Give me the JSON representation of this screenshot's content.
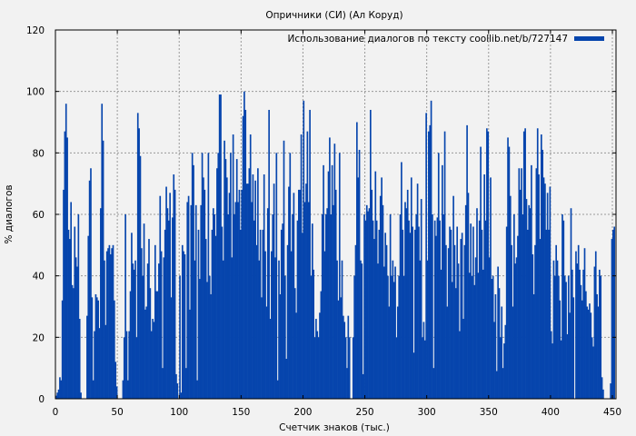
{
  "chart_data": {
    "type": "bar",
    "title": "Опричники (СИ) (Ал Коруд)",
    "xlabel": "Счетчик знаков (тыс.)",
    "ylabel": "% диалогов",
    "xlim": [
      0,
      452
    ],
    "ylim": [
      0,
      120
    ],
    "xticks": [
      0,
      50,
      100,
      150,
      200,
      250,
      300,
      350,
      400,
      450
    ],
    "yticks": [
      0,
      20,
      40,
      60,
      80,
      100,
      120
    ],
    "grid": true,
    "legend": {
      "label": "Использование диалогов по тексту coollib.net/b/727147",
      "placement": "top-right"
    },
    "color": "#0645AD",
    "x_start": 0,
    "x_step": 1,
    "values": [
      1,
      2,
      3,
      7,
      6,
      32,
      68,
      87,
      96,
      85,
      55,
      52,
      64,
      37,
      36,
      56,
      46,
      43,
      60,
      26,
      2,
      0,
      0,
      0,
      0,
      27,
      53,
      71,
      75,
      33,
      6,
      22,
      34,
      33,
      32,
      23,
      62,
      96,
      84,
      45,
      24,
      48,
      49,
      50,
      47,
      49,
      50,
      32,
      12,
      4,
      0,
      0,
      0,
      0,
      6,
      20,
      60,
      22,
      6,
      22,
      35,
      54,
      44,
      42,
      45,
      20,
      93,
      88,
      79,
      49,
      40,
      57,
      29,
      30,
      44,
      52,
      36,
      22,
      26,
      25,
      50,
      35,
      35,
      44,
      66,
      48,
      10,
      46,
      55,
      69,
      62,
      58,
      67,
      33,
      59,
      73,
      68,
      8,
      5,
      0,
      40,
      2,
      50,
      48,
      47,
      10,
      64,
      66,
      29,
      63,
      80,
      76,
      45,
      63,
      6,
      55,
      39,
      63,
      80,
      72,
      68,
      52,
      38,
      80,
      40,
      34,
      55,
      62,
      60,
      53,
      75,
      80,
      99,
      99,
      56,
      45,
      84,
      78,
      72,
      60,
      67,
      80,
      46,
      86,
      60,
      64,
      78,
      64,
      68,
      55,
      68,
      92,
      100,
      94,
      70,
      70,
      75,
      86,
      64,
      73,
      58,
      71,
      50,
      75,
      45,
      55,
      33,
      55,
      73,
      48,
      30,
      62,
      94,
      26,
      48,
      60,
      70,
      46,
      80,
      6,
      45,
      34,
      55,
      57,
      84,
      40,
      13,
      50,
      69,
      80,
      48,
      60,
      67,
      36,
      28,
      58,
      68,
      68,
      86,
      54,
      97,
      64,
      70,
      87,
      64,
      94,
      40,
      57,
      42,
      20,
      26,
      22,
      20,
      28,
      35,
      60,
      76,
      48,
      60,
      62,
      74,
      85,
      60,
      76,
      63,
      83,
      68,
      45,
      32,
      80,
      33,
      45,
      27,
      25,
      20,
      10,
      27,
      20,
      0,
      0,
      20,
      40,
      50,
      90,
      72,
      81,
      45,
      44,
      8,
      60,
      58,
      63,
      61,
      62,
      94,
      68,
      58,
      52,
      74,
      58,
      44,
      55,
      66,
      72,
      63,
      43,
      54,
      50,
      40,
      30,
      60,
      40,
      45,
      38,
      43,
      20,
      30,
      40,
      60,
      77,
      55,
      40,
      64,
      62,
      68,
      58,
      54,
      72,
      56,
      15,
      55,
      60,
      70,
      56,
      45,
      65,
      20,
      25,
      19,
      93,
      45,
      87,
      89,
      97,
      60,
      10,
      58,
      53,
      59,
      80,
      58,
      42,
      76,
      60,
      87,
      50,
      30,
      49,
      56,
      55,
      38,
      66,
      50,
      36,
      56,
      44,
      22,
      52,
      54,
      26,
      50,
      63,
      89,
      67,
      41,
      57,
      40,
      56,
      37,
      46,
      62,
      41,
      58,
      82,
      55,
      42,
      73,
      58,
      88,
      87,
      46,
      72,
      39,
      40,
      25,
      34,
      9,
      43,
      36,
      20,
      30,
      10,
      18,
      24,
      56,
      85,
      82,
      66,
      50,
      30,
      60,
      44,
      46,
      53,
      75,
      68,
      75,
      60,
      87,
      88,
      65,
      55,
      63,
      62,
      76,
      47,
      34,
      50,
      75,
      88,
      73,
      52,
      86,
      81,
      72,
      70,
      55,
      67,
      55,
      69,
      22,
      18,
      45,
      40,
      50,
      45,
      40,
      32,
      19,
      60,
      58,
      40,
      38,
      21,
      40,
      28,
      62,
      42,
      33,
      0,
      48,
      44,
      50,
      42,
      37,
      32,
      42,
      49,
      35,
      30,
      29,
      31,
      28,
      20,
      17,
      43,
      48,
      34,
      30,
      42,
      40,
      7,
      3,
      0,
      0,
      0,
      0,
      0,
      5,
      52,
      55,
      56
    ]
  }
}
